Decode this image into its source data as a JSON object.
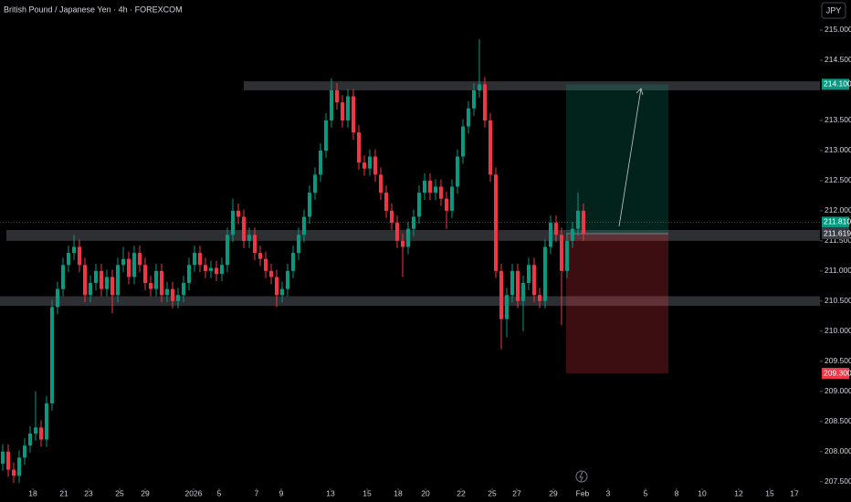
{
  "chart_data": {
    "type": "candlestick",
    "title": "British Pound / Japanese Yen · 4h · FOREXCOM",
    "currency_button": "JPY",
    "up_color": "#089981",
    "down_color": "#f23645",
    "grid": false,
    "ylim": [
      207.39,
      215.5
    ],
    "yticks": [
      {
        "value": 215,
        "label": "215.000"
      },
      {
        "value": 214.5,
        "label": "214.500"
      },
      {
        "value": 213.5,
        "label": "213.500"
      },
      {
        "value": 213,
        "label": "213.000"
      },
      {
        "value": 212.5,
        "label": "212.500"
      },
      {
        "value": 212,
        "label": "212.000"
      },
      {
        "value": 211.5,
        "label": "211.500"
      },
      {
        "value": 211,
        "label": "211.000"
      },
      {
        "value": 210.5,
        "label": "210.500"
      },
      {
        "value": 210,
        "label": "210.000"
      },
      {
        "value": 209.5,
        "label": "209.500"
      },
      {
        "value": 209,
        "label": "209.000"
      },
      {
        "value": 208.5,
        "label": "208.500"
      },
      {
        "value": 208,
        "label": "208.000"
      },
      {
        "value": 207.5,
        "label": "207.500"
      }
    ],
    "xlim": [
      -0.5,
      149.17
    ],
    "xticks": [
      {
        "value": 5.5,
        "label": "18"
      },
      {
        "value": 11.17,
        "label": "21"
      },
      {
        "value": 15.67,
        "label": "23"
      },
      {
        "value": 21.33,
        "label": "25"
      },
      {
        "value": 26,
        "label": "29"
      },
      {
        "value": 34.83,
        "label": "2026"
      },
      {
        "value": 39.5,
        "label": "5"
      },
      {
        "value": 46.33,
        "label": "7"
      },
      {
        "value": 50.83,
        "label": "9"
      },
      {
        "value": 59.83,
        "label": "13"
      },
      {
        "value": 66.5,
        "label": "15"
      },
      {
        "value": 72.17,
        "label": "18"
      },
      {
        "value": 77.17,
        "label": "20"
      },
      {
        "value": 83.67,
        "label": "22"
      },
      {
        "value": 89.33,
        "label": "25"
      },
      {
        "value": 93.83,
        "label": "27"
      },
      {
        "value": 100.5,
        "label": "29"
      },
      {
        "value": 105.83,
        "label": "Feb"
      },
      {
        "value": 110.5,
        "label": "3"
      },
      {
        "value": 117.33,
        "label": "5"
      },
      {
        "value": 123,
        "label": "8"
      },
      {
        "value": 127.67,
        "label": "10"
      },
      {
        "value": 134.33,
        "label": "12"
      },
      {
        "value": 140,
        "label": "15"
      },
      {
        "value": 144.5,
        "label": "17"
      }
    ],
    "ohlc": [
      [
        207.8,
        208.12,
        207.68,
        208.0
      ],
      [
        208.0,
        208.12,
        207.58,
        207.7
      ],
      [
        207.7,
        207.82,
        207.48,
        207.6
      ],
      [
        207.6,
        208.02,
        207.48,
        207.9
      ],
      [
        207.9,
        208.22,
        207.78,
        208.1
      ],
      [
        208.1,
        208.42,
        207.98,
        208.3
      ],
      [
        208.3,
        209.0,
        208.18,
        208.4
      ],
      [
        208.4,
        208.52,
        208.08,
        208.2
      ],
      [
        208.2,
        208.92,
        208.08,
        208.8
      ],
      [
        208.8,
        210.52,
        208.68,
        210.4
      ],
      [
        210.4,
        210.82,
        210.28,
        210.7
      ],
      [
        210.7,
        211.22,
        210.58,
        211.1
      ],
      [
        211.1,
        211.42,
        210.98,
        211.3
      ],
      [
        211.3,
        211.6,
        211.18,
        211.4
      ],
      [
        211.4,
        211.52,
        210.98,
        211.1
      ],
      [
        211.1,
        211.22,
        210.48,
        210.6
      ],
      [
        210.6,
        210.92,
        210.48,
        210.8
      ],
      [
        210.8,
        211.12,
        210.68,
        211.0
      ],
      [
        211.0,
        211.12,
        210.58,
        210.7
      ],
      [
        210.7,
        211.02,
        210.58,
        210.9
      ],
      [
        210.9,
        211.02,
        210.3,
        210.6
      ],
      [
        210.6,
        211.22,
        210.48,
        211.1
      ],
      [
        211.1,
        211.4,
        210.98,
        211.2
      ],
      [
        211.2,
        211.32,
        210.78,
        210.9
      ],
      [
        210.9,
        211.42,
        210.78,
        211.3
      ],
      [
        211.3,
        211.42,
        210.98,
        211.1
      ],
      [
        211.1,
        211.22,
        210.68,
        210.8
      ],
      [
        210.8,
        210.92,
        210.58,
        210.7
      ],
      [
        210.7,
        211.12,
        210.58,
        211.0
      ],
      [
        211.0,
        211.12,
        210.48,
        210.6
      ],
      [
        210.6,
        210.82,
        210.48,
        210.7
      ],
      [
        210.7,
        210.82,
        210.38,
        210.5
      ],
      [
        210.5,
        210.72,
        210.38,
        210.6
      ],
      [
        210.6,
        210.92,
        210.48,
        210.8
      ],
      [
        210.8,
        211.22,
        210.68,
        211.1
      ],
      [
        211.1,
        211.42,
        210.98,
        211.3
      ],
      [
        211.3,
        211.42,
        210.98,
        211.1
      ],
      [
        211.1,
        211.22,
        210.88,
        211.0
      ],
      [
        211.0,
        211.17,
        210.88,
        211.05
      ],
      [
        211.05,
        211.17,
        210.83,
        210.95
      ],
      [
        210.95,
        211.22,
        210.83,
        211.1
      ],
      [
        211.1,
        211.72,
        210.98,
        211.6
      ],
      [
        211.6,
        212.2,
        211.48,
        212.0
      ],
      [
        212.0,
        212.12,
        211.78,
        211.9
      ],
      [
        211.9,
        212.02,
        211.38,
        211.5
      ],
      [
        211.5,
        211.72,
        211.38,
        211.6
      ],
      [
        211.6,
        211.72,
        211.18,
        211.3
      ],
      [
        211.3,
        211.42,
        211.08,
        211.2
      ],
      [
        211.2,
        211.32,
        210.88,
        211.0
      ],
      [
        211.0,
        211.12,
        210.78,
        210.9
      ],
      [
        210.9,
        211.02,
        210.4,
        210.6
      ],
      [
        210.6,
        210.82,
        210.48,
        210.7
      ],
      [
        210.7,
        211.12,
        210.58,
        211.0
      ],
      [
        211.0,
        211.42,
        210.88,
        211.3
      ],
      [
        211.3,
        211.72,
        211.18,
        211.6
      ],
      [
        211.6,
        212.02,
        211.48,
        211.9
      ],
      [
        211.9,
        212.42,
        211.78,
        212.3
      ],
      [
        212.3,
        212.72,
        212.18,
        212.6
      ],
      [
        212.6,
        213.12,
        212.48,
        213.0
      ],
      [
        213.0,
        213.62,
        212.88,
        213.5
      ],
      [
        213.5,
        214.2,
        213.38,
        214.0
      ],
      [
        214.0,
        214.12,
        213.68,
        213.8
      ],
      [
        213.8,
        213.92,
        213.38,
        213.5
      ],
      [
        213.5,
        214.02,
        213.38,
        213.9
      ],
      [
        213.9,
        214.02,
        213.18,
        213.3
      ],
      [
        213.3,
        213.42,
        212.68,
        212.8
      ],
      [
        212.8,
        212.92,
        212.58,
        212.7
      ],
      [
        212.7,
        213.02,
        212.58,
        212.9
      ],
      [
        212.9,
        213.02,
        212.48,
        212.6
      ],
      [
        212.6,
        212.72,
        212.18,
        212.3
      ],
      [
        212.3,
        212.42,
        211.88,
        212.0
      ],
      [
        212.0,
        212.12,
        211.68,
        211.8
      ],
      [
        211.8,
        211.92,
        211.38,
        211.5
      ],
      [
        211.5,
        211.62,
        210.9,
        211.4
      ],
      [
        211.4,
        211.82,
        211.28,
        211.7
      ],
      [
        211.7,
        212.02,
        211.58,
        211.9
      ],
      [
        211.9,
        212.42,
        211.78,
        212.3
      ],
      [
        212.3,
        212.62,
        212.18,
        212.5
      ],
      [
        212.5,
        212.62,
        212.18,
        212.3
      ],
      [
        212.3,
        212.52,
        212.18,
        212.4
      ],
      [
        212.4,
        212.52,
        212.08,
        212.2
      ],
      [
        212.2,
        212.32,
        211.7,
        212.0
      ],
      [
        212.0,
        212.52,
        211.88,
        212.4
      ],
      [
        212.4,
        213.02,
        212.28,
        212.9
      ],
      [
        212.9,
        213.52,
        212.78,
        213.4
      ],
      [
        213.4,
        213.82,
        213.28,
        213.7
      ],
      [
        213.7,
        214.12,
        213.58,
        214.0
      ],
      [
        214.0,
        214.85,
        213.88,
        214.1
      ],
      [
        214.1,
        214.22,
        213.38,
        213.5
      ],
      [
        213.5,
        213.62,
        212.48,
        212.6
      ],
      [
        212.6,
        212.72,
        210.88,
        211.0
      ],
      [
        211.0,
        211.12,
        209.7,
        210.2
      ],
      [
        210.2,
        210.72,
        209.9,
        210.6
      ],
      [
        210.6,
        211.12,
        210.48,
        211.0
      ],
      [
        211.0,
        211.12,
        210.38,
        210.5
      ],
      [
        210.5,
        210.92,
        210.0,
        210.8
      ],
      [
        210.8,
        211.22,
        210.68,
        211.1
      ],
      [
        211.1,
        211.22,
        210.48,
        210.6
      ],
      [
        210.6,
        210.72,
        210.38,
        210.5
      ],
      [
        210.5,
        211.52,
        210.38,
        211.4
      ],
      [
        211.4,
        211.92,
        211.28,
        211.8
      ],
      [
        211.8,
        211.92,
        211.48,
        211.6
      ],
      [
        211.6,
        211.72,
        210.1,
        211.0
      ],
      [
        211.0,
        211.62,
        210.88,
        211.5
      ],
      [
        211.5,
        211.82,
        211.38,
        211.7
      ],
      [
        211.7,
        212.3,
        211.58,
        212.0
      ],
      [
        212.0,
        212.12,
        211.5,
        211.62
      ]
    ],
    "zones": [
      [
        214.15,
        214.0
      ],
      [
        211.68,
        211.5
      ],
      [
        210.58,
        210.42
      ]
    ],
    "current_price": {
      "value": 211.81,
      "label": "211.810"
    },
    "position": {
      "target": {
        "value": 214.1,
        "label": "214.100"
      },
      "entry": {
        "value": 211.619,
        "label": "211.619"
      },
      "stop": {
        "value": 209.3,
        "label": "209.300"
      }
    }
  }
}
